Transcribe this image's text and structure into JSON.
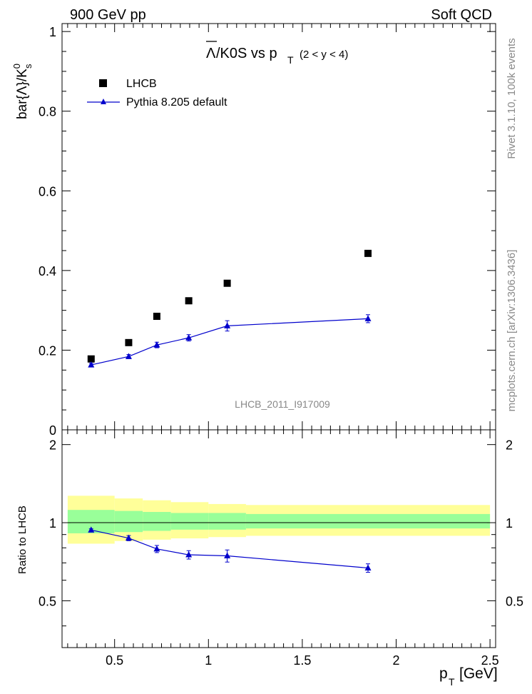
{
  "header": {
    "left": "900 GeV pp",
    "right": "Soft QCD"
  },
  "title": {
    "symbol": "Λ",
    "main": "/K0S vs p",
    "sub": "T",
    "range": "(2 < y < 4)"
  },
  "side_text": {
    "upper": "Rivet 3.1.10,  100k events",
    "lower": "mcplots.cern.ch [arXiv:1306.3436]"
  },
  "watermark": "LHCB_2011_I917009",
  "chart_data": [
    {
      "type": "scatter",
      "panel": "main",
      "ylabel": "bar{Λ}/K",
      "ylabel_sup": "0",
      "ylabel_sub": "s",
      "xlabel_main": "p",
      "xlabel_sub": "T",
      "xlabel_unit": "[GeV]",
      "xlim": [
        0.22,
        2.53
      ],
      "ylim": [
        0,
        1.02
      ],
      "yticks": [
        0,
        0.2,
        0.4,
        0.6,
        0.8,
        1
      ],
      "ytick_labels": [
        "0",
        "0.2",
        "0.4",
        "0.6",
        "0.8",
        "1"
      ],
      "legend_position": "top-left",
      "series": [
        {
          "name": "LHCB",
          "marker": "square",
          "color": "#000000",
          "x": [
            0.375,
            0.575,
            0.725,
            0.895,
            1.1,
            1.85
          ],
          "y": [
            0.178,
            0.219,
            0.285,
            0.324,
            0.368,
            0.443
          ]
        },
        {
          "name": "Pythia 8.205 default",
          "marker": "triangle",
          "color": "#0000cc",
          "x": [
            0.375,
            0.575,
            0.725,
            0.895,
            1.1,
            1.85
          ],
          "y": [
            0.163,
            0.184,
            0.213,
            0.231,
            0.261,
            0.279
          ],
          "yerr": [
            0.004,
            0.005,
            0.007,
            0.008,
            0.013,
            0.01
          ]
        }
      ]
    },
    {
      "type": "line",
      "panel": "ratio",
      "ylabel": "Ratio to LHCB",
      "xlim": [
        0.22,
        2.53
      ],
      "ylim": [
        0.33,
        2.28
      ],
      "xticks": [
        0.5,
        1,
        1.5,
        2,
        2.5
      ],
      "xtick_labels": [
        "0.5",
        "1",
        "1.5",
        "2",
        "2.5"
      ],
      "yticks": [
        0.5,
        1,
        2
      ],
      "ytick_labels": [
        "0.5",
        "1",
        "2"
      ],
      "bands": {
        "edges": [
          0.25,
          0.5,
          0.65,
          0.8,
          1.0,
          1.2,
          2.5
        ],
        "yellow_lo": [
          0.83,
          0.85,
          0.86,
          0.87,
          0.88,
          0.89,
          0.89
        ],
        "yellow_hi": [
          1.27,
          1.24,
          1.22,
          1.2,
          1.18,
          1.17,
          1.17
        ],
        "green_lo": [
          0.91,
          0.92,
          0.93,
          0.94,
          0.94,
          0.95,
          0.95
        ],
        "green_hi": [
          1.12,
          1.11,
          1.1,
          1.09,
          1.09,
          1.08,
          1.08
        ]
      },
      "series": [
        {
          "name": "Pythia 8.205 default",
          "color": "#0000cc",
          "x": [
            0.375,
            0.575,
            0.725,
            0.895,
            1.1,
            1.85
          ],
          "y": [
            0.937,
            0.872,
            0.792,
            0.752,
            0.745,
            0.669
          ],
          "yerr": [
            0.01,
            0.02,
            0.025,
            0.028,
            0.04,
            0.025
          ]
        }
      ]
    }
  ]
}
